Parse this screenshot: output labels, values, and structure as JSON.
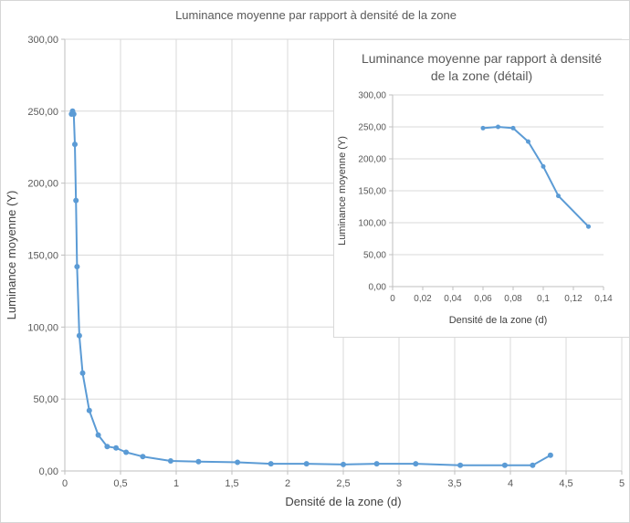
{
  "page": {
    "background": "#ffffff",
    "gridline_color": "#d9d9d9",
    "axis_color": "#bfbfbf",
    "label_color": "#595959",
    "axis_title_color": "#404040"
  },
  "chart_data": [
    {
      "type": "line",
      "title": "Luminance moyenne par rapport à densité de la zone",
      "xlabel": "Densité de la zone (d)",
      "ylabel": "Luminance moyenne (Y)",
      "xlim": [
        0,
        5
      ],
      "ylim": [
        0,
        300
      ],
      "xticks": [
        0,
        0.5,
        1,
        1.5,
        2,
        2.5,
        3,
        3.5,
        4,
        4.5,
        5
      ],
      "xtick_labels": [
        "0",
        "0,5",
        "1",
        "1,5",
        "2",
        "2,5",
        "3",
        "3,5",
        "4",
        "4,5",
        "5"
      ],
      "yticks": [
        0,
        50,
        100,
        150,
        200,
        250,
        300
      ],
      "ytick_labels": [
        "0,00",
        "50,00",
        "100,00",
        "150,00",
        "200,00",
        "250,00",
        "300,00"
      ],
      "grid": "horizontal+vertical",
      "legend": "none",
      "series": [
        {
          "name": "Luminance moyenne (Y)",
          "color": "#5b9bd5",
          "x": [
            0.06,
            0.07,
            0.08,
            0.09,
            0.1,
            0.11,
            0.13,
            0.16,
            0.22,
            0.3,
            0.38,
            0.46,
            0.55,
            0.7,
            0.95,
            1.2,
            1.55,
            1.85,
            2.17,
            2.5,
            2.8,
            3.15,
            3.55,
            3.95,
            4.2,
            4.36
          ],
          "y": [
            248,
            250,
            248,
            227,
            188,
            142,
            94,
            68,
            42,
            25,
            17,
            16,
            13,
            10,
            7,
            6.5,
            6,
            5,
            5,
            4.5,
            5,
            5,
            4,
            4,
            4,
            11
          ]
        }
      ]
    },
    {
      "type": "line",
      "title": "Luminance moyenne par rapport à densité de la zone (détail)",
      "xlabel": "Densité de la zone (d)",
      "ylabel": "Luminance moyenne (Y)",
      "xlim": [
        0,
        0.14
      ],
      "ylim": [
        0,
        300
      ],
      "xticks": [
        0,
        0.02,
        0.04,
        0.06,
        0.08,
        0.1,
        0.12,
        0.14
      ],
      "xtick_labels": [
        "0",
        "0,02",
        "0,04",
        "0,06",
        "0,08",
        "0,1",
        "0,12",
        "0,14"
      ],
      "yticks": [
        0,
        50,
        100,
        150,
        200,
        250,
        300
      ],
      "ytick_labels": [
        "0,00",
        "50,00",
        "100,00",
        "150,00",
        "200,00",
        "250,00",
        "300,00"
      ],
      "grid": "horizontal",
      "legend": "none",
      "series": [
        {
          "name": "Luminance moyenne (Y)",
          "color": "#5b9bd5",
          "x": [
            0.06,
            0.07,
            0.08,
            0.09,
            0.1,
            0.11,
            0.13
          ],
          "y": [
            248,
            250,
            248,
            227,
            188,
            142,
            94
          ]
        }
      ]
    }
  ]
}
